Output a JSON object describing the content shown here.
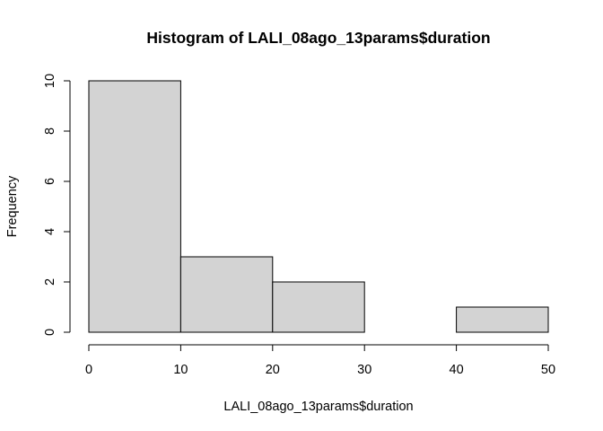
{
  "chart_data": {
    "type": "bar",
    "title": "Histogram of LALI_08ago_13params$duration",
    "xlabel": "LALI_08ago_13params$duration",
    "ylabel": "Frequency",
    "bins": [
      {
        "start": 0,
        "end": 10,
        "count": 10
      },
      {
        "start": 10,
        "end": 20,
        "count": 3
      },
      {
        "start": 20,
        "end": 30,
        "count": 2
      },
      {
        "start": 30,
        "end": 40,
        "count": 0
      },
      {
        "start": 40,
        "end": 50,
        "count": 1
      }
    ],
    "xlim": [
      0,
      50
    ],
    "ylim": [
      0,
      10
    ],
    "x_ticks": [
      0,
      10,
      20,
      30,
      40,
      50
    ],
    "y_ticks": [
      0,
      2,
      4,
      6,
      8,
      10
    ],
    "x_tick_labels": [
      "0",
      "10",
      "20",
      "30",
      "40",
      "50"
    ],
    "y_tick_labels": [
      "0",
      "2",
      "4",
      "6",
      "8",
      "10"
    ],
    "bar_color": "#d3d3d3",
    "bar_border_color": "#000000",
    "grid": false,
    "legend": "none"
  }
}
